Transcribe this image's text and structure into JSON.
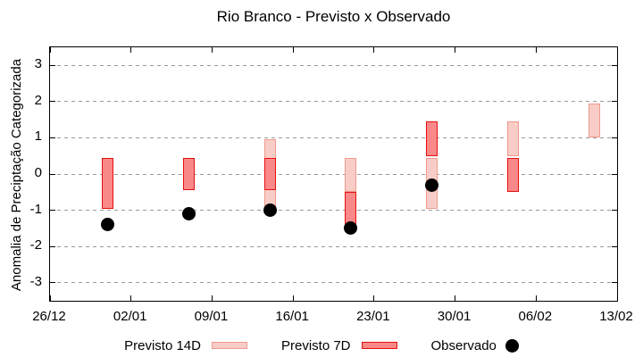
{
  "chart_data": {
    "type": "range-bar",
    "title": "Rio Branco - Previsto x Observado",
    "ylabel": "Anomalia de Preciptação Categorizada",
    "ylim": [
      -3.5,
      3.5
    ],
    "yticks": [
      3,
      2,
      1,
      0,
      -1,
      -2,
      -3
    ],
    "xlim_days": [
      0,
      49
    ],
    "xticks": [
      {
        "day": 0,
        "label": "26/12"
      },
      {
        "day": 7,
        "label": "02/01"
      },
      {
        "day": 14,
        "label": "09/01"
      },
      {
        "day": 21,
        "label": "16/01"
      },
      {
        "day": 28,
        "label": "23/01"
      },
      {
        "day": 35,
        "label": "30/01"
      },
      {
        "day": 42,
        "label": "06/02"
      },
      {
        "day": 49,
        "label": "13/02"
      }
    ],
    "grid": "horizontal-dashed",
    "legend_position": "bottom",
    "colors": {
      "grid": "#999999",
      "axis": "#000000",
      "background": "#ffffff"
    },
    "series": [
      {
        "name": "Previsto 14D",
        "type": "range-bar",
        "fill": "#f9cdc7",
        "border": "#f0998d",
        "points": [
          {
            "day": 19,
            "date": "14/01",
            "hi": 0.95,
            "lo": -0.95
          },
          {
            "day": 26,
            "date": "21/01",
            "hi": 0.45,
            "lo": -0.5
          },
          {
            "day": 33,
            "date": "28/01",
            "hi": 0.45,
            "lo": -0.95
          },
          {
            "day": 40,
            "date": "04/02",
            "hi": 1.45,
            "lo": 0.5
          },
          {
            "day": 47,
            "date": "11/02",
            "hi": 1.95,
            "lo": 1.0
          }
        ]
      },
      {
        "name": "Previsto 7D",
        "type": "range-bar",
        "fill": "#f98989",
        "border": "#e60f0f",
        "points": [
          {
            "day": 5,
            "date": "31/12",
            "hi": 0.45,
            "lo": -0.95
          },
          {
            "day": 12,
            "date": "07/01",
            "hi": 0.45,
            "lo": -0.45
          },
          {
            "day": 19,
            "date": "14/01",
            "hi": 0.45,
            "lo": -0.45
          },
          {
            "day": 26,
            "date": "21/01",
            "hi": -0.5,
            "lo": -1.4
          },
          {
            "day": 33,
            "date": "28/01",
            "hi": 1.45,
            "lo": 0.5
          },
          {
            "day": 40,
            "date": "04/02",
            "hi": 0.45,
            "lo": -0.5
          }
        ]
      },
      {
        "name": "Observado",
        "type": "scatter",
        "color": "#000000",
        "points": [
          {
            "day": 5,
            "date": "31/12",
            "value": -1.4
          },
          {
            "day": 12,
            "date": "07/01",
            "value": -1.1
          },
          {
            "day": 19,
            "date": "14/01",
            "value": -1.0
          },
          {
            "day": 26,
            "date": "21/01",
            "value": -1.5
          },
          {
            "day": 33,
            "date": "28/01",
            "value": -0.3
          }
        ]
      }
    ]
  }
}
